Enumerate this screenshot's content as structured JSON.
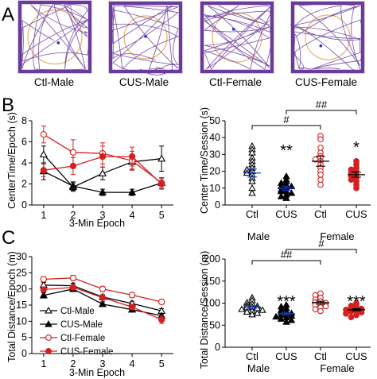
{
  "panel_labels": {
    "a": "A",
    "b": "B",
    "c": "C"
  },
  "tracks": [
    {
      "label": "Ctl-Male",
      "zone_color": "#e8b26a",
      "path_color": "#6a3b9a"
    },
    {
      "label": "CUS-Male",
      "zone_color": "#e8b26a",
      "path_color": "#6a3b9a"
    },
    {
      "label": "Ctl-Female",
      "zone_color": "#e8b26a",
      "path_color": "#6a3b9a"
    },
    {
      "label": "CUS-Female",
      "zone_color": "#e8b26a",
      "path_color": "#6a3b9a"
    }
  ],
  "legend": [
    "Ctl-Male",
    "CUS-Male",
    "Ctl-Female",
    "CUS-Female"
  ],
  "colors": {
    "ctl_male": "#000000",
    "cus_male": "#000000",
    "ctl_female": "#d42020",
    "cus_female": "#d42020",
    "mean_blue": "#1a3cc8"
  },
  "chart_data": [
    {
      "id": "b-left",
      "type": "line",
      "xlabel": "3-Min Epoch",
      "ylabel": "CenterTime/Epoch (s)",
      "x": [
        1,
        2,
        3,
        4,
        5
      ],
      "xlim": [
        0.6,
        5.4
      ],
      "ylim": [
        0,
        8
      ],
      "yticks": [
        "0",
        "2",
        "4",
        "6",
        "8"
      ],
      "series": [
        {
          "name": "Ctl-Male",
          "values": [
            4.8,
            1.7,
            3.0,
            4.1,
            4.4
          ],
          "err": [
            0.8,
            0.4,
            0.6,
            0.7,
            1.2
          ],
          "marker": "triangle",
          "filled": false,
          "color": "#000000"
        },
        {
          "name": "CUS-Male",
          "values": [
            3.2,
            1.8,
            1.2,
            1.2,
            2.1
          ],
          "err": [
            0.8,
            0.4,
            0.3,
            0.3,
            0.5
          ],
          "marker": "triangle",
          "filled": true,
          "color": "#000000"
        },
        {
          "name": "Ctl-Female",
          "values": [
            6.7,
            5.0,
            4.9,
            4.2,
            2.1
          ],
          "err": [
            0.8,
            1.2,
            1.0,
            0.9,
            0.5
          ],
          "marker": "circle",
          "filled": false,
          "color": "#d42020"
        },
        {
          "name": "CUS-Female",
          "values": [
            3.3,
            3.7,
            4.6,
            4.6,
            2.0
          ],
          "err": [
            0.6,
            0.8,
            1.0,
            0.9,
            0.5
          ],
          "marker": "circle",
          "filled": true,
          "color": "#d42020"
        }
      ]
    },
    {
      "id": "b-right",
      "type": "scatter",
      "ylabel": "Center Time/Session (s)",
      "ylim": [
        0,
        50
      ],
      "yticks": [
        "0",
        "10",
        "20",
        "30",
        "40",
        "50"
      ],
      "categories": [
        "Ctl",
        "CUS",
        "Ctl",
        "CUS"
      ],
      "groups": [
        "Male",
        "Female"
      ],
      "significance": [
        "**",
        "*"
      ],
      "brackets": [
        "#",
        "##"
      ],
      "series": [
        {
          "name": "Ctl",
          "mean": 19,
          "sem": 2.4,
          "marker": "triangle",
          "filled": false,
          "color": "#000000",
          "values": [
            35,
            33,
            31,
            28,
            26,
            24,
            22,
            21,
            20,
            19,
            18,
            16,
            14,
            10,
            7
          ]
        },
        {
          "name": "CUS",
          "mean": 10,
          "sem": 1.2,
          "marker": "triangle",
          "filled": true,
          "color": "#000000",
          "values": [
            17,
            15,
            14,
            13,
            12,
            11,
            11,
            10,
            9,
            8,
            8,
            7,
            6,
            5,
            4
          ]
        },
        {
          "name": "Ctl",
          "mean": 26,
          "sem": 3.0,
          "marker": "circle",
          "filled": false,
          "color": "#d42020",
          "values": [
            41,
            39,
            34,
            31,
            29,
            28,
            27,
            26,
            24,
            22,
            20,
            18,
            15,
            12
          ]
        },
        {
          "name": "CUS",
          "mean": 18,
          "sem": 1.5,
          "marker": "circle",
          "filled": true,
          "color": "#d42020",
          "values": [
            26,
            24,
            22,
            21,
            20,
            19,
            18,
            17,
            16,
            15,
            14,
            12,
            10
          ]
        }
      ]
    },
    {
      "id": "c-left",
      "type": "line",
      "xlabel": "3-Min Epoch",
      "ylabel": "Total Distance/Epoch (m)",
      "x": [
        1,
        2,
        3,
        4,
        5
      ],
      "xlim": [
        0.6,
        5.4
      ],
      "ylim": [
        0,
        30
      ],
      "yticks": [
        "0",
        "5",
        "10",
        "15",
        "20",
        "25",
        "30"
      ],
      "series": [
        {
          "name": "Ctl-Male",
          "values": [
            21.2,
            21.0,
            17.5,
            15.5,
            13.2
          ],
          "err": [
            0.8,
            0.8,
            0.7,
            0.7,
            0.7
          ],
          "marker": "triangle",
          "filled": false,
          "color": "#000000"
        },
        {
          "name": "CUS-Male",
          "values": [
            18.0,
            20.0,
            15.3,
            13.6,
            11.7
          ],
          "err": [
            0.8,
            0.8,
            0.7,
            0.6,
            0.6
          ],
          "marker": "triangle",
          "filled": true,
          "color": "#000000"
        },
        {
          "name": "Ctl-Female",
          "values": [
            23.0,
            23.4,
            20.0,
            18.1,
            16.0
          ],
          "err": [
            0.8,
            0.8,
            0.8,
            0.7,
            0.7
          ],
          "marker": "circle",
          "filled": false,
          "color": "#d42020"
        },
        {
          "name": "CUS-Female",
          "values": [
            19.8,
            20.5,
            17.3,
            14.4,
            10.5
          ],
          "err": [
            0.8,
            0.8,
            0.7,
            0.7,
            1.2
          ],
          "marker": "circle",
          "filled": true,
          "color": "#d42020"
        }
      ]
    },
    {
      "id": "c-right",
      "type": "scatter",
      "ylabel": "Total Distance/Session (m)",
      "ylim": [
        0,
        200
      ],
      "yticks": [
        "0",
        "50",
        "100",
        "150",
        "200"
      ],
      "categories": [
        "Ctl",
        "CUS",
        "Ctl",
        "CUS"
      ],
      "groups": [
        "Male",
        "Female"
      ],
      "significance": [
        "***",
        "***"
      ],
      "brackets": [
        "##",
        "#"
      ],
      "series": [
        {
          "name": "Ctl",
          "mean": 91,
          "sem": 3.0,
          "marker": "triangle",
          "filled": false,
          "color": "#000000",
          "values": [
            112,
            106,
            101,
            98,
            95,
            93,
            91,
            90,
            88,
            86,
            84,
            82,
            80,
            77,
            74
          ]
        },
        {
          "name": "CUS",
          "mean": 76,
          "sem": 3.0,
          "marker": "triangle",
          "filled": true,
          "color": "#000000",
          "values": [
            96,
            92,
            88,
            84,
            81,
            79,
            77,
            75,
            73,
            71,
            69,
            67,
            64,
            61,
            57
          ]
        },
        {
          "name": "Ctl",
          "mean": 101,
          "sem": 3.5,
          "marker": "circle",
          "filled": false,
          "color": "#d42020",
          "values": [
            122,
            118,
            112,
            108,
            104,
            102,
            100,
            98,
            96,
            93,
            90,
            86,
            82
          ]
        },
        {
          "name": "CUS",
          "mean": 85,
          "sem": 2.5,
          "marker": "circle",
          "filled": true,
          "color": "#d42020",
          "values": [
            100,
            97,
            94,
            91,
            89,
            87,
            85,
            83,
            81,
            79,
            76,
            73,
            68
          ]
        }
      ]
    }
  ]
}
